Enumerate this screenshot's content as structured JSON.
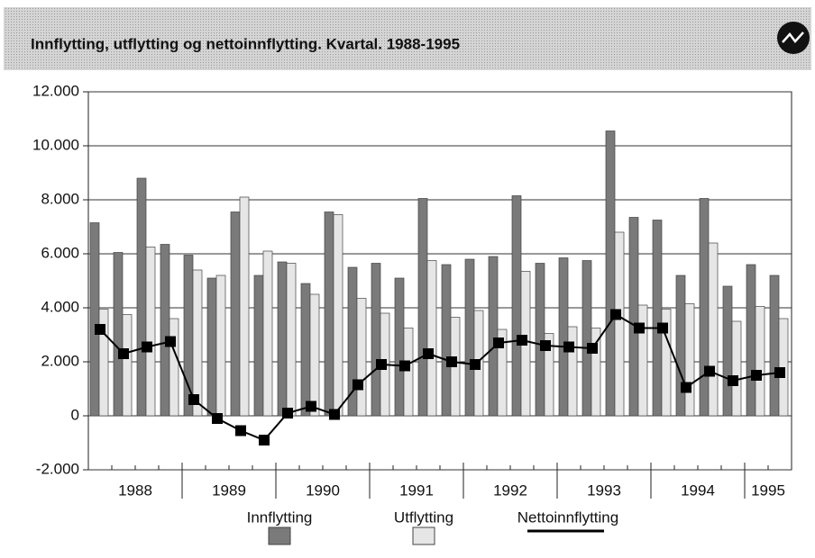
{
  "chart_data": {
    "type": "bar_line",
    "title": "Innflytting, utflytting og nettoinnflytting. Kvartal. 1988-1995",
    "categories": [
      "1988",
      null,
      null,
      null,
      "1989",
      null,
      null,
      null,
      "1990",
      null,
      null,
      null,
      "1991",
      null,
      null,
      null,
      "1992",
      null,
      null,
      null,
      "1993",
      null,
      null,
      null,
      "1994",
      null,
      null,
      null,
      "1995",
      null
    ],
    "series": [
      {
        "name": "Innflytting",
        "color": "#7a7a7a",
        "kind": "bar",
        "values": [
          7150,
          6050,
          8800,
          6350,
          5950,
          5100,
          7550,
          5200,
          5700,
          4900,
          7550,
          5500,
          5650,
          5100,
          8050,
          5600,
          5800,
          5900,
          8150,
          5650,
          5850,
          5750,
          10550,
          7350,
          7250,
          5200,
          8050,
          4800,
          5600,
          5200
        ]
      },
      {
        "name": "Utflytting",
        "color": "#e6e6e6",
        "kind": "bar",
        "values": [
          3950,
          3750,
          6250,
          3600,
          5400,
          5200,
          8100,
          6100,
          5650,
          4500,
          7450,
          4350,
          3800,
          3250,
          5750,
          3650,
          3900,
          3200,
          5350,
          3050,
          3300,
          3250,
          6800,
          4100,
          3950,
          4150,
          6400,
          3500,
          4050,
          3600
        ]
      },
      {
        "name": "Nettoinnflytting",
        "color": "#000000",
        "kind": "line",
        "values": [
          3200,
          2300,
          2550,
          2750,
          600,
          -100,
          -550,
          -900,
          100,
          350,
          50,
          1150,
          1900,
          1850,
          2300,
          2000,
          1900,
          2700,
          2800,
          2600,
          2550,
          2500,
          3750,
          3250,
          3250,
          1050,
          1650,
          1300,
          1500,
          1600
        ]
      }
    ],
    "ylim": [
      -2000,
      12000
    ],
    "yticks": [
      {
        "value": -2000,
        "label": "-2.000"
      },
      0,
      {
        "value": 2000,
        "label": "2.000"
      },
      {
        "value": 4000,
        "label": "4.000"
      },
      {
        "value": 6000,
        "label": "6.000"
      },
      {
        "value": 8000,
        "label": "8.000"
      },
      {
        "value": 10000,
        "label": "10.000"
      },
      {
        "value": 12000,
        "label": "12.000"
      }
    ],
    "grid": true
  }
}
